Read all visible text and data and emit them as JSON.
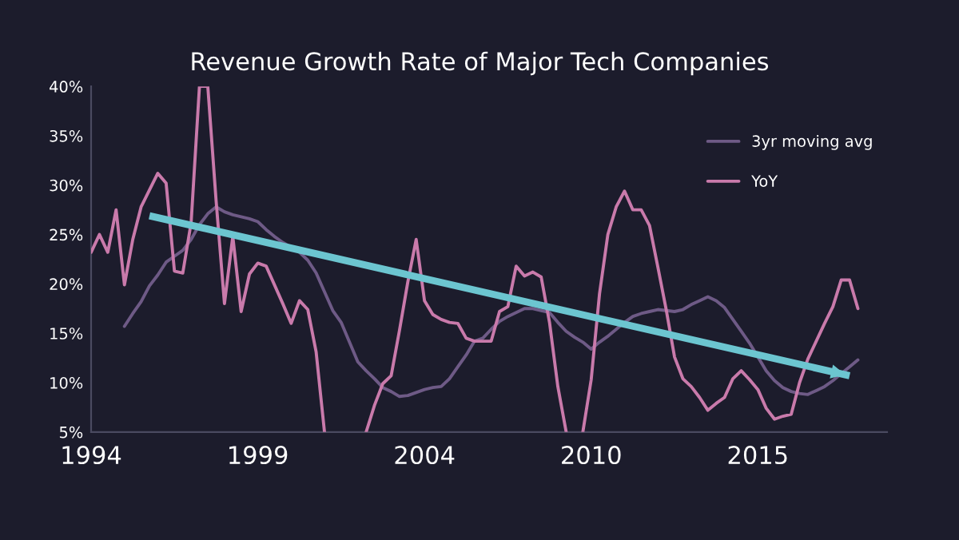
{
  "chart_data": {
    "type": "line",
    "title": "Revenue Growth Rate of Major Tech Companies",
    "categories": [
      "1994",
      null,
      null,
      null,
      null,
      null,
      null,
      null,
      null,
      null,
      null,
      null,
      null,
      null,
      null,
      null,
      null,
      null,
      null,
      null,
      "1999",
      null,
      null,
      null,
      null,
      null,
      null,
      null,
      null,
      null,
      null,
      null,
      null,
      null,
      null,
      null,
      null,
      null,
      null,
      null,
      "2004",
      null,
      null,
      null,
      null,
      null,
      null,
      null,
      null,
      null,
      null,
      null,
      null,
      null,
      null,
      null,
      null,
      null,
      null,
      null,
      "2010",
      null,
      null,
      null,
      null,
      null,
      null,
      null,
      null,
      null,
      null,
      null,
      null,
      null,
      null,
      null,
      null,
      null,
      null,
      null,
      "2015",
      null,
      null,
      null,
      null,
      null,
      null,
      null,
      null,
      null,
      null,
      null,
      null,
      null,
      null,
      null
    ],
    "ylim": [
      5,
      40
    ],
    "yticks": [
      {
        "value": 5,
        "label": "5%"
      },
      {
        "value": 10,
        "label": "10%"
      },
      {
        "value": 15,
        "label": "15%"
      },
      {
        "value": 20,
        "label": "20%"
      },
      {
        "value": 25,
        "label": "25%"
      },
      {
        "value": 30,
        "label": "30%"
      },
      {
        "value": 35,
        "label": "35%"
      },
      {
        "value": 40,
        "label": "40%"
      }
    ],
    "grid": false,
    "legend": "top right",
    "marker": "none",
    "line_style": "solid",
    "series": [
      {
        "name": "3yr moving avg",
        "color": "#6e5a86",
        "values": [
          null,
          null,
          null,
          null,
          15.7,
          17.0,
          18.2,
          19.8,
          20.9,
          22.2,
          22.8,
          23.4,
          24.5,
          26.0,
          27.1,
          27.8,
          27.3,
          27.0,
          26.8,
          26.6,
          26.3,
          25.5,
          24.8,
          24.2,
          23.7,
          23.2,
          22.4,
          21.1,
          19.2,
          17.3,
          16.1,
          14.1,
          12.1,
          11.2,
          10.4,
          9.5,
          9.1,
          8.6,
          8.7,
          9.0,
          9.3,
          9.5,
          9.6,
          10.4,
          11.6,
          12.8,
          14.2,
          14.5,
          15.4,
          16.2,
          16.7,
          17.1,
          17.5,
          17.5,
          17.3,
          17.1,
          16.1,
          15.2,
          14.6,
          14.1,
          13.4,
          14.1,
          14.7,
          15.4,
          16.1,
          16.7,
          17.0,
          17.2,
          17.4,
          17.3,
          17.2,
          17.4,
          17.9,
          18.3,
          18.7,
          18.3,
          17.6,
          16.4,
          15.2,
          14.0,
          12.6,
          11.2,
          10.2,
          9.5,
          9.1,
          8.9,
          8.8,
          9.2,
          9.6,
          10.2,
          10.9,
          11.6,
          12.3,
          null,
          null,
          null
        ]
      },
      {
        "name": "YoY",
        "color": "#c97aab",
        "values": [
          23.2,
          25.0,
          23.2,
          27.5,
          19.9,
          24.5,
          27.8,
          29.5,
          31.2,
          30.2,
          21.3,
          21.1,
          26.2,
          40,
          40,
          28.4,
          18.0,
          24.8,
          17.2,
          21.0,
          22.1,
          21.8,
          19.9,
          18.0,
          16.0,
          18.3,
          17.4,
          13.1,
          5,
          null,
          null,
          null,
          null,
          5,
          7.7,
          9.9,
          10.7,
          15.3,
          20.2,
          24.5,
          18.3,
          16.9,
          16.4,
          16.1,
          16.0,
          14.5,
          14.2,
          14.2,
          14.2,
          17.2,
          17.7,
          21.8,
          20.8,
          21.2,
          20.7,
          16.1,
          9.6,
          5,
          null,
          5,
          10.3,
          19.0,
          25.0,
          27.8,
          29.4,
          27.5,
          27.5,
          25.9,
          21.7,
          17.4,
          12.6,
          10.4,
          9.6,
          8.5,
          7.2,
          7.9,
          8.5,
          10.4,
          11.2,
          10.3,
          9.3,
          7.4,
          6.3,
          6.6,
          6.8,
          10.0,
          12.4,
          14.2,
          16.0,
          17.7,
          20.4,
          20.4,
          17.5,
          null,
          null,
          null
        ]
      },
      {
        "type": "line",
        "color": "#6cc5d0",
        "values": [
          null,
          null,
          null,
          null,
          null,
          null,
          null,
          26.9,
          null,
          null,
          null,
          null,
          null,
          null,
          null,
          null,
          null,
          null,
          null,
          null,
          null,
          null,
          null,
          null,
          null,
          null,
          null,
          null,
          null,
          null,
          null,
          null,
          null,
          null,
          null,
          null,
          null,
          null,
          null,
          null,
          null,
          null,
          null,
          null,
          null,
          null,
          null,
          null,
          null,
          null,
          null,
          null,
          null,
          null,
          null,
          null,
          null,
          null,
          null,
          null,
          null,
          null,
          null,
          null,
          null,
          null,
          null,
          null,
          null,
          null,
          null,
          null,
          null,
          null,
          null,
          null,
          null,
          null,
          null,
          null,
          null,
          null,
          null,
          null,
          null,
          null,
          null,
          null,
          null,
          null,
          null,
          10.7,
          null,
          null,
          null,
          null
        ]
      }
    ]
  }
}
